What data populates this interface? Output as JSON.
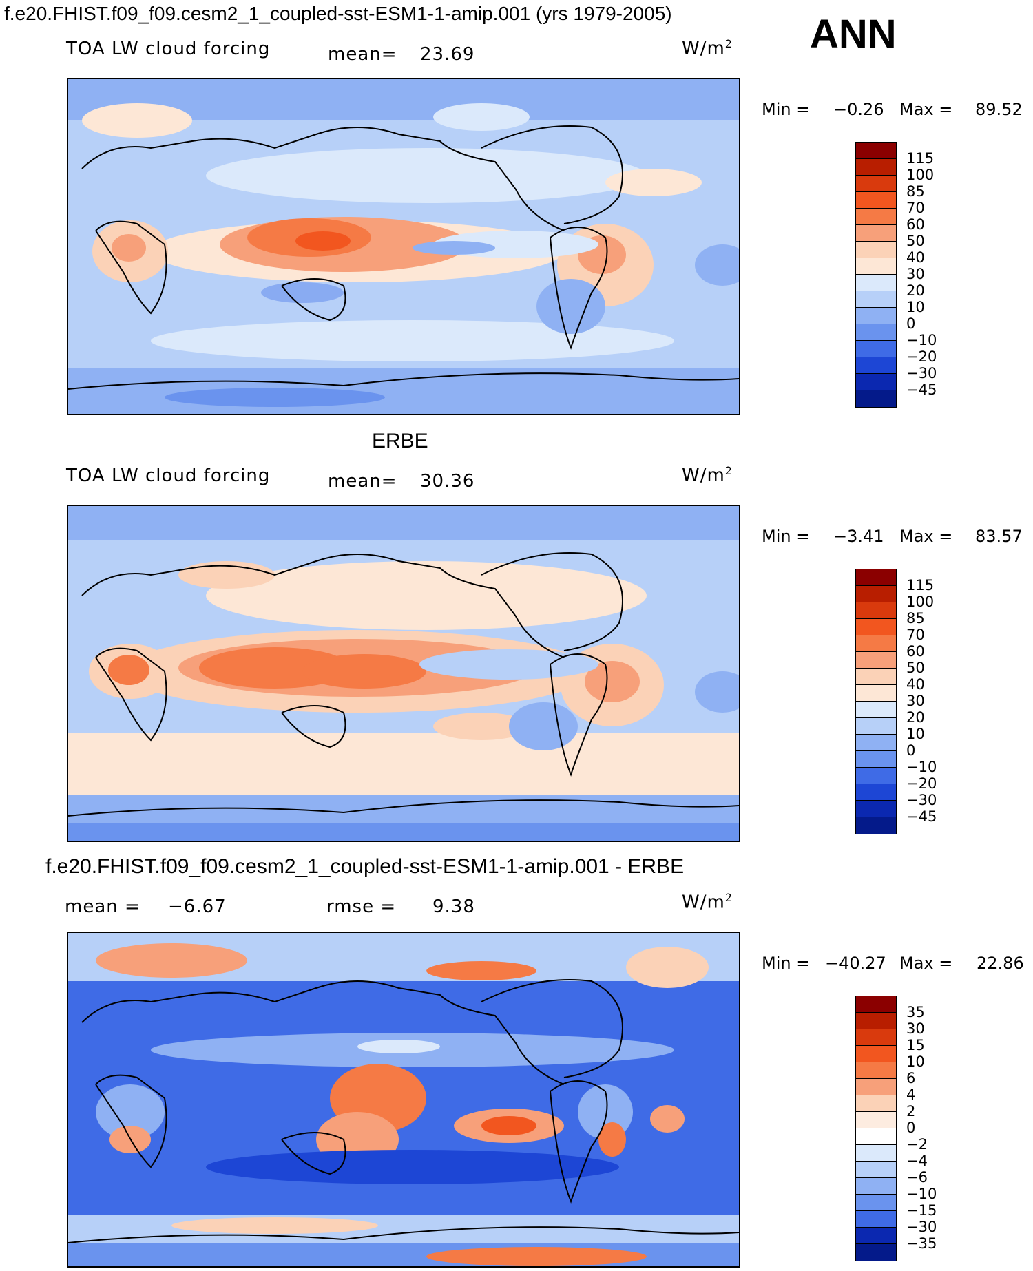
{
  "header": {
    "title": "f.e20.FHIST.f09_f09.cesm2_1_coupled-sst-ESM1-1-amip.001 (yrs 1979-2005)",
    "season": "ANN"
  },
  "panels": [
    {
      "heading": "",
      "variable": "TOA LW cloud forcing",
      "stat1_label": "mean=",
      "stat1_value": "23.69",
      "stat2_label": "",
      "stat2_value": "",
      "units": "W/m",
      "units_exp": "2",
      "min_label": "Min =",
      "min_value": "−0.26",
      "max_label": "Max =",
      "max_value": "89.52",
      "levels": [
        "115",
        "100",
        "85",
        "70",
        "60",
        "50",
        "40",
        "30",
        "20",
        "10",
        "0",
        "−10",
        "−20",
        "−30",
        "−45"
      ]
    },
    {
      "heading": "ERBE",
      "variable": "TOA LW cloud forcing",
      "stat1_label": "mean=",
      "stat1_value": "30.36",
      "stat2_label": "",
      "stat2_value": "",
      "units": "W/m",
      "units_exp": "2",
      "min_label": "Min =",
      "min_value": "−3.41",
      "max_label": "Max =",
      "max_value": "83.57",
      "levels": [
        "115",
        "100",
        "85",
        "70",
        "60",
        "50",
        "40",
        "30",
        "20",
        "10",
        "0",
        "−10",
        "−20",
        "−30",
        "−45"
      ]
    },
    {
      "heading": "f.e20.FHIST.f09_f09.cesm2_1_coupled-sst-ESM1-1-amip.001 - ERBE",
      "variable": "",
      "stat1_label": "mean =",
      "stat1_value": "−6.67",
      "stat2_label": "rmse =",
      "stat2_value": "9.38",
      "units": "W/m",
      "units_exp": "2",
      "min_label": "Min =",
      "min_value": "−40.27",
      "max_label": "Max =",
      "max_value": "22.86",
      "levels": [
        "35",
        "30",
        "15",
        "10",
        "6",
        "4",
        "2",
        "0",
        "−2",
        "−4",
        "−6",
        "−10",
        "−15",
        "−30",
        "−35"
      ]
    }
  ],
  "colors": {
    "abs_scale": [
      "#8b0000",
      "#b81e00",
      "#d93a0d",
      "#f2561f",
      "#f57a45",
      "#f7a07a",
      "#fbd2b7",
      "#fde7d6",
      "#dbe9fb",
      "#b7d0f8",
      "#8fb1f3",
      "#6a93ee",
      "#3f6be6",
      "#1d46d5",
      "#0b28b0",
      "#041a8a"
    ],
    "diff_scale": [
      "#8b0000",
      "#b81e00",
      "#d93a0d",
      "#f2561f",
      "#f57a45",
      "#f7a07a",
      "#fbd2b7",
      "#fdece0",
      "#ffffff",
      "#dbe9fb",
      "#b7d0f8",
      "#8fb1f3",
      "#6a93ee",
      "#3f6be6",
      "#0b28b0",
      "#041a8a"
    ],
    "land_line": "#000000"
  }
}
